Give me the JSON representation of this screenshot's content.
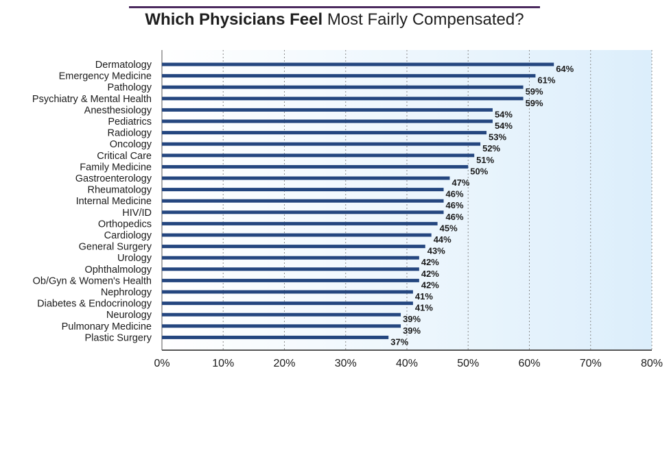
{
  "title": {
    "bold": "Which Physicians Feel",
    "light": "Most Fairly Compensated?"
  },
  "colors": {
    "bar": "#24467f",
    "title_rule": "#4b2a5e",
    "plot_bg_left": "#ffffff",
    "plot_bg_right": "#dceefb"
  },
  "chart_data": {
    "type": "bar",
    "orientation": "horizontal",
    "title": "Which Physicians Feel Most Fairly Compensated?",
    "xlim": [
      0,
      80
    ],
    "xticks": [
      "0%",
      "10%",
      "20%",
      "30%",
      "40%",
      "50%",
      "60%",
      "70%",
      "80%"
    ],
    "grid": "vertical-dotted",
    "categories": [
      "Dermatology",
      "Emergency Medicine",
      "Pathology",
      "Psychiatry & Mental Health",
      "Anesthesiology",
      "Pediatrics",
      "Radiology",
      "Oncology",
      "Critical Care",
      "Family Medicine",
      "Gastroenterology",
      "Rheumatology",
      "Internal Medicine",
      "HIV/ID",
      "Orthopedics",
      "Cardiology",
      "General Surgery",
      "Urology",
      "Ophthalmology",
      "Ob/Gyn & Women's Health",
      "Nephrology",
      "Diabetes & Endocrinology",
      "Neurology",
      "Pulmonary Medicine",
      "Plastic Surgery"
    ],
    "values": [
      64,
      61,
      59,
      59,
      54,
      54,
      53,
      52,
      51,
      50,
      47,
      46,
      46,
      46,
      45,
      44,
      43,
      42,
      42,
      42,
      41,
      41,
      39,
      39,
      37
    ],
    "labels": [
      "64%",
      "61%",
      "59%",
      "59%",
      "54%",
      "54%",
      "53%",
      "52%",
      "51%",
      "50%",
      "47%",
      "46%",
      "46%",
      "46%",
      "45%",
      "44%",
      "43%",
      "42%",
      "42%",
      "42%",
      "41%",
      "41%",
      "39%",
      "39%",
      "37%"
    ]
  }
}
